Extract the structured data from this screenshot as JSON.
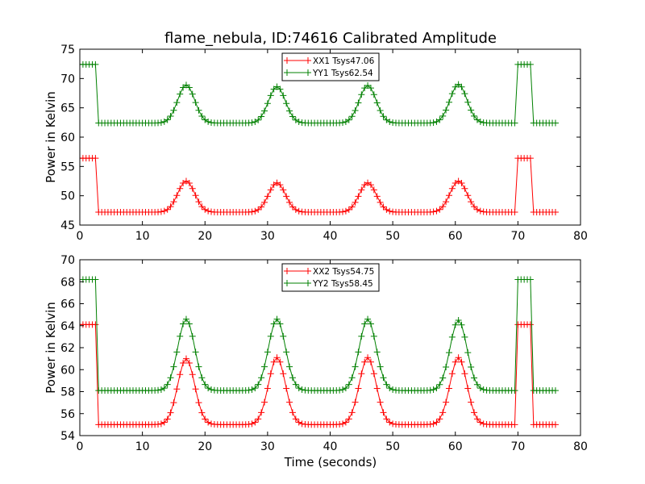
{
  "chart_data": [
    {
      "type": "line",
      "title": "flame_nebula, ID:74616 Calibrated Amplitude",
      "xlabel": "",
      "ylabel": "Power in Kelvin",
      "xlim": [
        0,
        80
      ],
      "ylim": [
        45,
        75
      ],
      "xticks": [
        0,
        10,
        20,
        30,
        40,
        50,
        60,
        70,
        80
      ],
      "yticks": [
        45,
        50,
        55,
        60,
        65,
        70,
        75
      ],
      "grid": false,
      "legend": "top-center",
      "marker": "+",
      "series": [
        {
          "name": "XX1 Tsys47.06",
          "color": "#ff0000",
          "model": {
            "baseline": 47.2,
            "step_level": 56.4,
            "step_ranges": [
              [
                0.0,
                2.8
              ],
              [
                69.9,
                72.4
              ]
            ],
            "peaks": [
              [
                17.0,
                5.3
              ],
              [
                31.5,
                5.0
              ],
              [
                46.0,
                5.0
              ],
              [
                60.5,
                5.3
              ]
            ],
            "width": 1.35,
            "x_start": 0.0,
            "x_end": 75.8,
            "dx": 0.5
          }
        },
        {
          "name": "YY1 Tsys62.54",
          "color": "#008000",
          "model": {
            "baseline": 62.4,
            "step_level": 72.4,
            "step_ranges": [
              [
                0.0,
                2.8
              ],
              [
                69.9,
                72.4
              ]
            ],
            "peaks": [
              [
                17.0,
                6.5
              ],
              [
                31.5,
                6.2
              ],
              [
                46.0,
                6.4
              ],
              [
                60.5,
                6.6
              ]
            ],
            "width": 1.35,
            "x_start": 0.0,
            "x_end": 75.8,
            "dx": 0.5
          }
        }
      ]
    },
    {
      "type": "line",
      "title": "",
      "xlabel": "Time (seconds)",
      "ylabel": "Power in Kelvin",
      "xlim": [
        0,
        80
      ],
      "ylim": [
        54,
        70
      ],
      "xticks": [
        0,
        10,
        20,
        30,
        40,
        50,
        60,
        70,
        80
      ],
      "yticks": [
        54,
        56,
        58,
        60,
        62,
        64,
        66,
        68,
        70
      ],
      "grid": false,
      "legend": "top-center",
      "marker": "+",
      "series": [
        {
          "name": "XX2 Tsys54.75",
          "color": "#ff0000",
          "model": {
            "baseline": 55.0,
            "step_level": 64.1,
            "step_ranges": [
              [
                0.0,
                2.8
              ],
              [
                69.9,
                72.4
              ]
            ],
            "peaks": [
              [
                17.0,
                6.0
              ],
              [
                31.5,
                6.1
              ],
              [
                46.0,
                6.1
              ],
              [
                60.5,
                6.1
              ]
            ],
            "width": 1.35,
            "x_start": 0.0,
            "x_end": 75.8,
            "dx": 0.5
          }
        },
        {
          "name": "YY2 Tsys58.45",
          "color": "#008000",
          "model": {
            "baseline": 58.1,
            "step_level": 68.2,
            "step_ranges": [
              [
                0.0,
                2.8
              ],
              [
                69.9,
                72.4
              ]
            ],
            "peaks": [
              [
                17.0,
                6.5
              ],
              [
                31.5,
                6.5
              ],
              [
                46.0,
                6.5
              ],
              [
                60.5,
                6.4
              ]
            ],
            "width": 1.35,
            "x_start": 0.0,
            "x_end": 75.8,
            "dx": 0.5
          }
        }
      ]
    }
  ]
}
